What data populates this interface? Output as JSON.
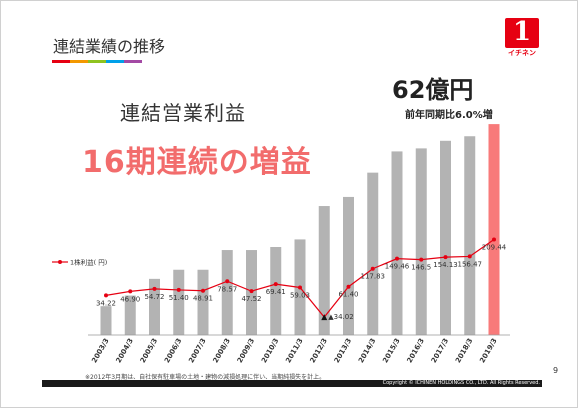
{
  "slide": {
    "title": "連結業績の推移",
    "subtitle": "連結営業利益",
    "headline": "16期連続の増益",
    "value_callout": "62億円",
    "growth_callout": "前年同期比6.0%増",
    "footnote": "※2012年3月期は、自社保有駐車場の土地・建物の減損処理に伴い、当期純損失を計上。",
    "copyright": "Copyright © ICHINEN HOLDINGS CO., LTD.  All Rights Reserved.",
    "page_number": "9",
    "logo_text": "1",
    "logo_word": "イチネン",
    "accent_colors": [
      "#e60012",
      "#f39800",
      "#8fc31f",
      "#00a0e9",
      "#a349a4"
    ]
  },
  "chart_data": {
    "type": "bar+line",
    "categories": [
      "2003/3",
      "2004/3",
      "2005/3",
      "2006/3",
      "2007/3",
      "2008/3",
      "2009/3",
      "2010/3",
      "2011/3",
      "2012/3",
      "2013/3",
      "2014/3",
      "2015/3",
      "2016/3",
      "2017/3",
      "2018/3",
      "2019/3"
    ],
    "bars": {
      "name": "連結営業利益",
      "values": [
        19,
        26,
        37,
        43,
        43,
        56,
        56,
        58,
        63,
        85,
        91,
        107,
        121,
        123,
        128,
        131,
        139
      ],
      "color": "#b3b3b3",
      "highlight_last_color": "#f87a7a",
      "ylim": [
        0,
        145
      ]
    },
    "line": {
      "name": "1株利益( 円)",
      "values": [
        34.22,
        46.9,
        54.72,
        51.4,
        48.91,
        78.57,
        47.52,
        69.41,
        59.03,
        -34.02,
        61.4,
        117.83,
        149.46,
        146.5,
        154.13,
        156.47,
        209.44
      ],
      "labels": [
        "34.22",
        "46.90",
        "54.72",
        "51.40",
        "48.91",
        "78.57",
        "47.52",
        "69.41",
        "59.03",
        "▲34.02",
        "61.40",
        "117.83",
        "149.46",
        "146.5",
        "154.13",
        "156.47",
        "209.44"
      ],
      "color": "#e60012",
      "ylim": [
        -90,
        600
      ]
    },
    "legend": "left"
  }
}
